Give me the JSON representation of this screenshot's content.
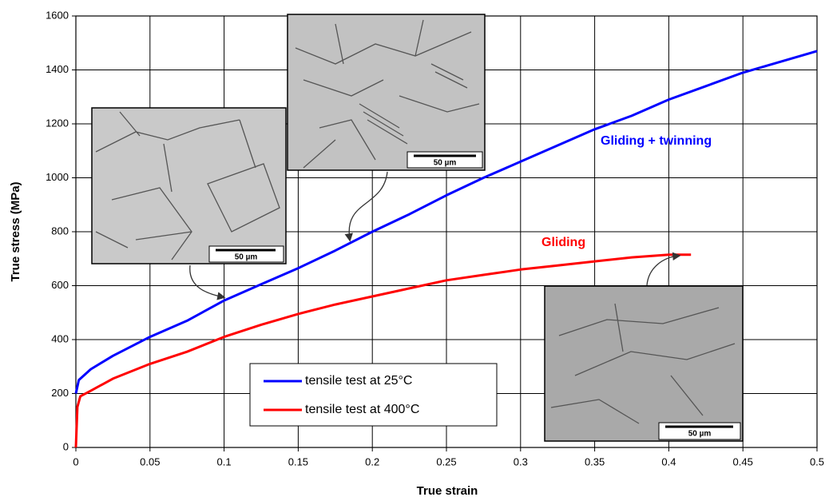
{
  "chart_data": {
    "type": "line",
    "x_label": "True strain",
    "y_label": "True stress (MPa)",
    "xlim": [
      0,
      0.5
    ],
    "ylim": [
      0,
      1600
    ],
    "xticks": [
      0,
      0.05,
      0.1,
      0.15,
      0.2,
      0.25,
      0.3,
      0.35,
      0.4,
      0.45,
      0.5
    ],
    "yticks": [
      0,
      200,
      400,
      600,
      800,
      1000,
      1200,
      1400,
      1600
    ],
    "grid": true,
    "series": [
      {
        "name": "tensile test at 25°C",
        "color": "#0000ff",
        "x": [
          0,
          0.002,
          0.01,
          0.025,
          0.05,
          0.075,
          0.1,
          0.125,
          0.15,
          0.175,
          0.2,
          0.225,
          0.25,
          0.275,
          0.3,
          0.325,
          0.35,
          0.375,
          0.4,
          0.425,
          0.45,
          0.475,
          0.5
        ],
        "values": [
          200,
          250,
          290,
          340,
          410,
          470,
          545,
          605,
          665,
          730,
          800,
          865,
          935,
          1000,
          1060,
          1120,
          1180,
          1230,
          1290,
          1340,
          1390,
          1430,
          1470
        ]
      },
      {
        "name": "tensile test at 400°C",
        "color": "#ff0000",
        "x": [
          0,
          0.001,
          0.003,
          0.01,
          0.025,
          0.05,
          0.075,
          0.1,
          0.125,
          0.15,
          0.175,
          0.2,
          0.225,
          0.25,
          0.275,
          0.3,
          0.325,
          0.35,
          0.375,
          0.4,
          0.415
        ],
        "values": [
          0,
          150,
          190,
          210,
          255,
          310,
          355,
          410,
          455,
          495,
          530,
          560,
          590,
          620,
          640,
          660,
          675,
          690,
          705,
          715,
          715
        ]
      }
    ],
    "annotations": [
      "Gliding + twinning",
      "Gliding"
    ],
    "insets": [
      {
        "scale_label": "50 µm"
      },
      {
        "scale_label": "50 µm"
      },
      {
        "scale_label": "50 µm"
      }
    ]
  }
}
